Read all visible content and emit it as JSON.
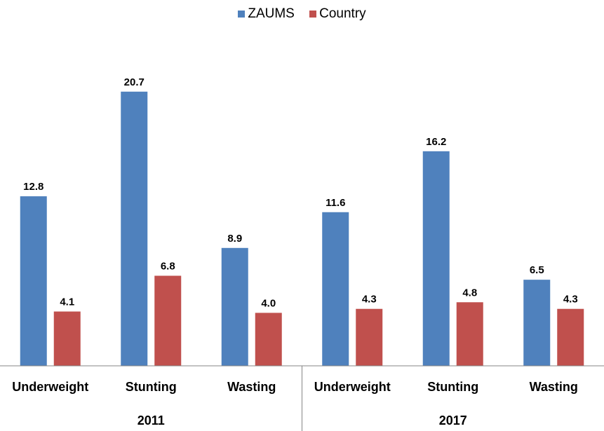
{
  "chart_data": {
    "type": "bar",
    "groups": [
      {
        "label": "2011",
        "categories": [
          "Underweight",
          "Stunting",
          "Wasting"
        ]
      },
      {
        "label": "2017",
        "categories": [
          "Underweight",
          "Stunting",
          "Wasting"
        ]
      }
    ],
    "categories": [
      "Underweight",
      "Stunting",
      "Wasting",
      "Underweight",
      "Stunting",
      "Wasting"
    ],
    "series": [
      {
        "name": "ZAUMS",
        "color": "#4f81bd",
        "values": [
          12.8,
          20.7,
          8.9,
          11.6,
          16.2,
          6.5
        ],
        "labels": [
          "12.8",
          "20.7",
          "8.9",
          "11.6",
          "16.2",
          "6.5"
        ]
      },
      {
        "name": "Country",
        "color": "#c0504d",
        "values": [
          4.1,
          6.8,
          4.0,
          4.3,
          4.8,
          4.3
        ],
        "labels": [
          "4.1",
          "6.8",
          "4.0",
          "4.3",
          "4.8",
          "4.3"
        ]
      }
    ],
    "ylim": [
      0,
      26
    ],
    "legend": "top-center",
    "grid": false,
    "title": "",
    "xlabel": "",
    "ylabel": ""
  }
}
